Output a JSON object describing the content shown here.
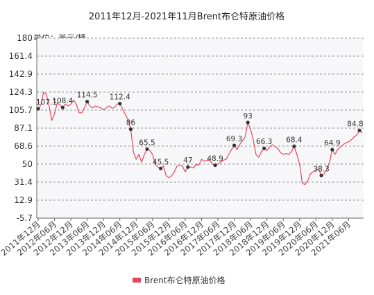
{
  "chart_data": {
    "type": "line",
    "title": "2011年12月-2021年11月Brent布仑特原油价格",
    "unit_label": "单位：美元/桶",
    "ylim": [
      -5.7,
      180
    ],
    "y_ticks": [
      "180",
      "161.4",
      "142.9",
      "124.3",
      "105.7",
      "87.1",
      "68.6",
      "50",
      "31.4",
      "12.9",
      "-5.7"
    ],
    "x_tick_labels": [
      "2011年12月",
      "2012年06月",
      "2012年12月",
      "2013年06月",
      "2013年12月",
      "2014年06月",
      "2014年12月",
      "2015年06月",
      "2015年12月",
      "2016年06月",
      "2016年12月",
      "2017年06月",
      "2017年12月",
      "2018年06月",
      "2018年12月",
      "2019年06月",
      "2019年12月",
      "2020年06月",
      "2020年12月",
      "2021年06月"
    ],
    "grid": true,
    "legend_position": "bottom-center",
    "colors": {
      "line": "#e8455b",
      "marker": "#333333",
      "grid": "#777777",
      "plot_bg": "#f7f7f9"
    },
    "series": [
      {
        "name": "Brent布仑特原油价格",
        "x": [
          0,
          1,
          2,
          3,
          4,
          5,
          6,
          7,
          8,
          9,
          10,
          11,
          12,
          13,
          14,
          15,
          16,
          17,
          18,
          19,
          20,
          21,
          22,
          23,
          24,
          25,
          26,
          27,
          28,
          29,
          30,
          31,
          32,
          33,
          34,
          35,
          36,
          37,
          38,
          39,
          40,
          41,
          42,
          43,
          44,
          45,
          46,
          47,
          48,
          49,
          50,
          51,
          52,
          53,
          54,
          55,
          56,
          57,
          58,
          59,
          60,
          61,
          62,
          63,
          64,
          65,
          66,
          67,
          68,
          69,
          70,
          71,
          72,
          73,
          74,
          75,
          76,
          77,
          78,
          79,
          80,
          81,
          82,
          83,
          84,
          85,
          86,
          87,
          88,
          89,
          90,
          91,
          92,
          93,
          94,
          95,
          96,
          97,
          98,
          99,
          100,
          101,
          102,
          103,
          104,
          105,
          106,
          107,
          108,
          109,
          110,
          111,
          112,
          113,
          114,
          115,
          116,
          117,
          118,
          119
        ],
        "values": [
          107.1,
          111,
          124,
          122,
          110,
          95,
          102,
          113,
          111,
          108.4,
          112,
          110,
          112,
          116,
          112,
          103,
          103,
          108,
          114.5,
          110,
          108,
          110,
          109,
          108,
          106,
          108,
          110,
          108,
          108,
          112,
          112.4,
          107,
          101,
          96,
          86,
          62,
          55,
          60,
          52,
          60,
          65.5,
          64,
          60,
          50,
          47,
          45.5,
          48,
          38,
          36,
          38,
          42,
          48,
          49,
          48,
          42,
          47,
          47,
          46,
          50,
          49,
          55,
          53,
          54,
          54,
          50,
          48.9,
          50,
          52,
          54,
          55,
          60,
          65,
          69.3,
          65,
          70,
          74,
          78,
          93,
          86,
          75,
          60,
          57,
          63,
          66.3,
          64,
          68,
          70,
          68,
          66,
          62,
          60,
          61,
          60,
          63,
          68.4,
          60,
          50,
          30,
          29,
          33,
          40,
          42,
          44,
          45,
          38.3,
          40,
          45,
          52,
          64.9,
          60,
          65,
          68,
          70,
          72,
          73,
          75,
          78,
          80,
          84.8,
          82
        ]
      }
    ],
    "markers": [
      {
        "x": 0,
        "y": 107.1,
        "label": "107.1"
      },
      {
        "x": 9,
        "y": 108.4,
        "label": "108.4"
      },
      {
        "x": 18,
        "y": 114.5,
        "label": "114.5"
      },
      {
        "x": 30,
        "y": 112.4,
        "label": "112.4"
      },
      {
        "x": 34,
        "y": 86,
        "label": "86"
      },
      {
        "x": 40,
        "y": 65.5,
        "label": "65.5"
      },
      {
        "x": 45,
        "y": 45.5,
        "label": "45.5"
      },
      {
        "x": 55,
        "y": 47,
        "label": "47"
      },
      {
        "x": 65,
        "y": 48.9,
        "label": "48.9"
      },
      {
        "x": 72,
        "y": 69.3,
        "label": "69.3"
      },
      {
        "x": 77,
        "y": 93,
        "label": "93"
      },
      {
        "x": 83,
        "y": 66.3,
        "label": "66.3"
      },
      {
        "x": 94,
        "y": 68.4,
        "label": "68.4"
      },
      {
        "x": 104,
        "y": 38.3,
        "label": "38.3"
      },
      {
        "x": 108,
        "y": 64.9,
        "label": "64.9"
      },
      {
        "x": 118,
        "y": 84.8,
        "label": "84.8"
      }
    ]
  }
}
